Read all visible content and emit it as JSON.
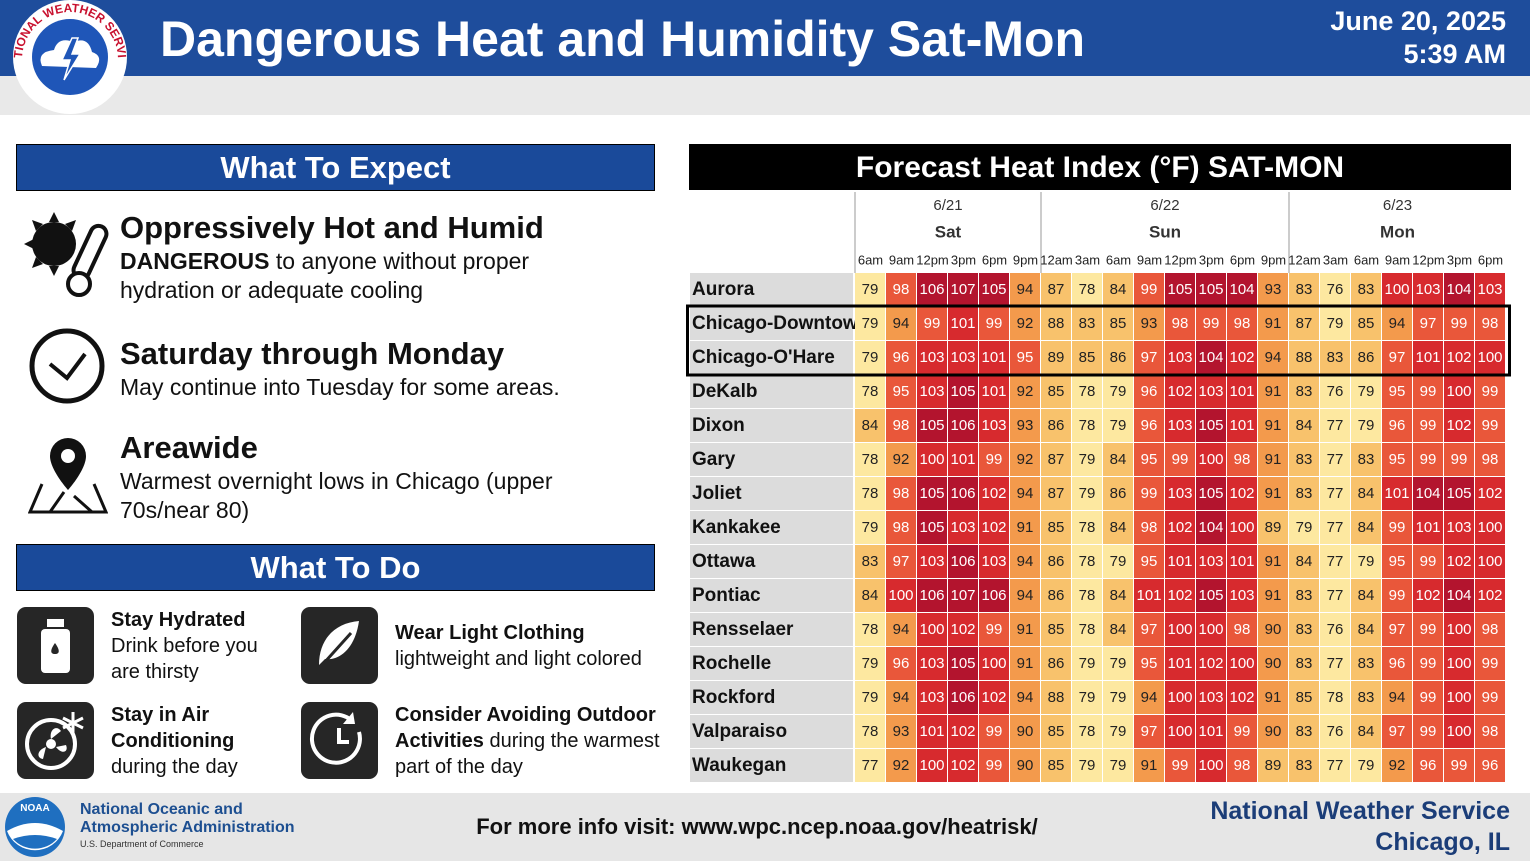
{
  "header": {
    "logo_text": "NATIONAL WEATHER SERVICE",
    "title": "Dangerous Heat and Humidity Sat-Mon",
    "date": "June 20, 2025",
    "time": "5:39 AM"
  },
  "expect": {
    "heading": "What To Expect",
    "items": [
      {
        "title": "Oppressively Hot and Humid",
        "bold": "DANGEROUS",
        "text": "to anyone without proper hydration or adequate cooling"
      },
      {
        "title": "Saturday through Monday",
        "text": "May continue into Tuesday for some areas."
      },
      {
        "title": "Areawide",
        "text": "Warmest overnight lows in Chicago (upper 70s/near 80)"
      }
    ]
  },
  "do": {
    "heading": "What To Do",
    "items": [
      {
        "bold": "Stay Hydrated",
        "text": "Drink before you are thirsty"
      },
      {
        "bold": "Wear Light Clothing",
        "text": "lightweight and light colored"
      },
      {
        "bold": "Stay in Air Conditioning",
        "text": "during the day"
      },
      {
        "bold": "Consider Avoiding Outdoor Activities",
        "text": "during the warmest part of the day"
      }
    ]
  },
  "table": {
    "title": "Forecast Heat Index (°F) SAT-MON",
    "days": [
      {
        "date": "6/21",
        "day": "Sat",
        "times": [
          "6am",
          "9am",
          "12pm",
          "3pm",
          "6pm",
          "9pm"
        ]
      },
      {
        "date": "6/22",
        "day": "Sun",
        "times": [
          "12am",
          "3am",
          "6am",
          "9am",
          "12pm",
          "3pm",
          "6pm",
          "9pm"
        ]
      },
      {
        "date": "6/23",
        "day": "Mon",
        "times": [
          "12am",
          "3am",
          "6am",
          "9am",
          "12pm",
          "3pm",
          "6pm"
        ]
      }
    ],
    "rows": [
      {
        "name": "Aurora",
        "values": [
          79,
          98,
          106,
          107,
          105,
          94,
          87,
          78,
          84,
          99,
          105,
          105,
          104,
          93,
          83,
          76,
          83,
          100,
          103,
          104,
          103
        ]
      },
      {
        "name": "Chicago-Downtown",
        "values": [
          79,
          94,
          99,
          101,
          99,
          92,
          88,
          83,
          85,
          93,
          98,
          99,
          98,
          91,
          87,
          79,
          85,
          94,
          97,
          99,
          98
        ]
      },
      {
        "name": "Chicago-O'Hare",
        "values": [
          79,
          96,
          103,
          103,
          101,
          95,
          89,
          85,
          86,
          97,
          103,
          104,
          102,
          94,
          88,
          83,
          86,
          97,
          101,
          102,
          100
        ]
      },
      {
        "name": "DeKalb",
        "values": [
          78,
          95,
          103,
          105,
          101,
          92,
          85,
          78,
          79,
          96,
          102,
          103,
          101,
          91,
          83,
          76,
          79,
          95,
          99,
          100,
          99
        ]
      },
      {
        "name": "Dixon",
        "values": [
          84,
          98,
          105,
          106,
          103,
          93,
          86,
          78,
          79,
          96,
          103,
          105,
          101,
          91,
          84,
          77,
          79,
          96,
          99,
          102,
          99
        ]
      },
      {
        "name": "Gary",
        "values": [
          78,
          92,
          100,
          101,
          99,
          92,
          87,
          79,
          84,
          95,
          99,
          100,
          98,
          91,
          83,
          77,
          83,
          95,
          99,
          99,
          98
        ]
      },
      {
        "name": "Joliet",
        "values": [
          78,
          98,
          105,
          106,
          102,
          94,
          87,
          79,
          86,
          99,
          103,
          105,
          102,
          91,
          83,
          77,
          84,
          101,
          104,
          105,
          102
        ]
      },
      {
        "name": "Kankakee",
        "values": [
          79,
          98,
          105,
          103,
          102,
          91,
          85,
          78,
          84,
          98,
          102,
          104,
          100,
          89,
          79,
          77,
          84,
          99,
          101,
          103,
          100
        ]
      },
      {
        "name": "Ottawa",
        "values": [
          83,
          97,
          103,
          106,
          103,
          94,
          86,
          78,
          79,
          95,
          101,
          103,
          101,
          91,
          84,
          77,
          79,
          95,
          99,
          102,
          100
        ]
      },
      {
        "name": "Pontiac",
        "values": [
          84,
          100,
          106,
          107,
          106,
          94,
          86,
          78,
          84,
          101,
          102,
          105,
          103,
          91,
          83,
          77,
          84,
          99,
          102,
          104,
          102
        ]
      },
      {
        "name": "Rensselaer",
        "values": [
          78,
          94,
          100,
          102,
          99,
          91,
          85,
          78,
          84,
          97,
          100,
          100,
          98,
          90,
          83,
          76,
          84,
          97,
          99,
          100,
          98
        ]
      },
      {
        "name": "Rochelle",
        "values": [
          79,
          96,
          103,
          105,
          100,
          91,
          86,
          79,
          79,
          95,
          101,
          102,
          100,
          90,
          83,
          77,
          83,
          96,
          99,
          100,
          99
        ]
      },
      {
        "name": "Rockford",
        "values": [
          79,
          94,
          103,
          106,
          102,
          94,
          88,
          79,
          79,
          94,
          100,
          103,
          102,
          91,
          85,
          78,
          83,
          94,
          99,
          100,
          99
        ]
      },
      {
        "name": "Valparaiso",
        "values": [
          78,
          93,
          101,
          102,
          99,
          90,
          85,
          78,
          79,
          97,
          100,
          101,
          99,
          90,
          83,
          76,
          84,
          97,
          99,
          100,
          98
        ]
      },
      {
        "name": "Waukegan",
        "values": [
          77,
          92,
          100,
          102,
          99,
          90,
          85,
          79,
          79,
          91,
          99,
          100,
          98,
          89,
          83,
          77,
          79,
          92,
          96,
          99,
          96
        ]
      }
    ]
  },
  "footer": {
    "noaa_logo": "NOAA",
    "agency_line1": "National Oceanic and",
    "agency_line2": "Atmospheric Administration",
    "department": "U.S. Department of Commerce",
    "info": "For more info visit: www.wpc.ncep.noaa.gov/heatrisk/",
    "office": "National Weather Service",
    "location": "Chicago, IL"
  }
}
